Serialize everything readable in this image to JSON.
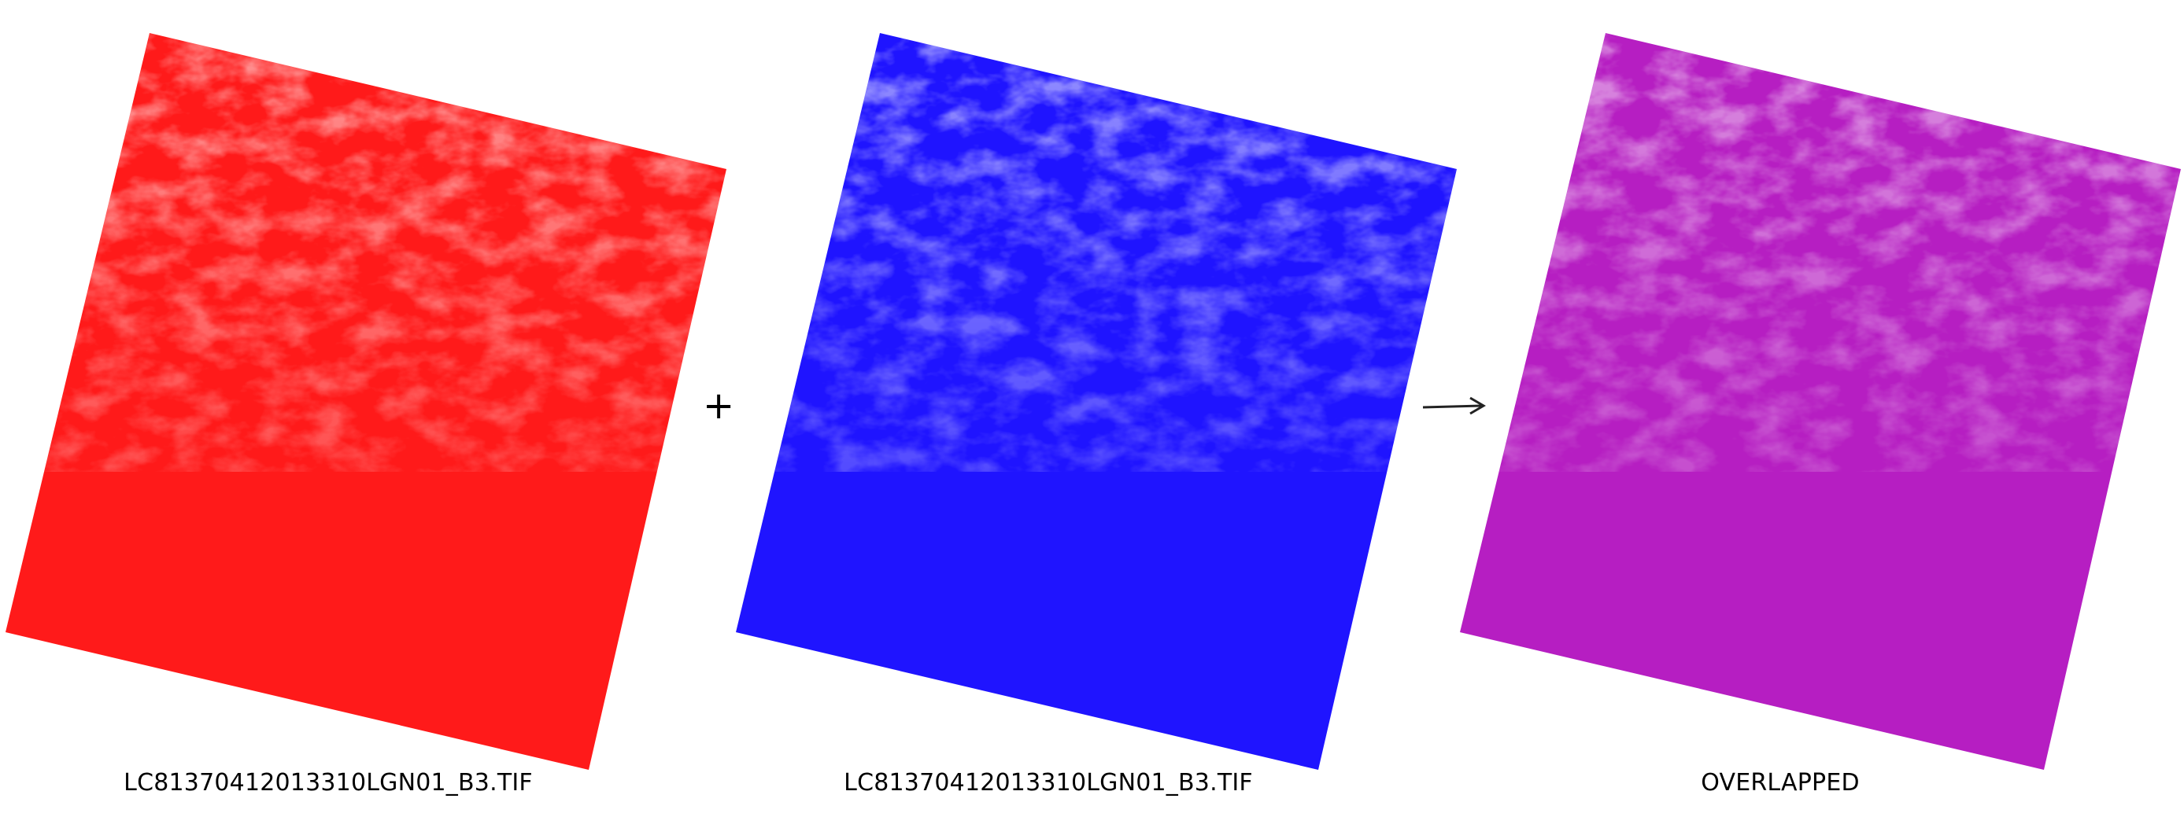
{
  "panels": [
    {
      "id": "left",
      "caption": "LC81370412013310LGN01_B3.TIF",
      "tint_color": "#ff1a1a"
    },
    {
      "id": "middle",
      "caption": "LC81370412013310LGN01_B3.TIF",
      "tint_color": "#1f14ff"
    },
    {
      "id": "result",
      "caption": "OVERLAPPED",
      "tint_color": "#b61ec2"
    }
  ],
  "operators": {
    "plus": "+",
    "arrow": "arrow-right-icon"
  }
}
